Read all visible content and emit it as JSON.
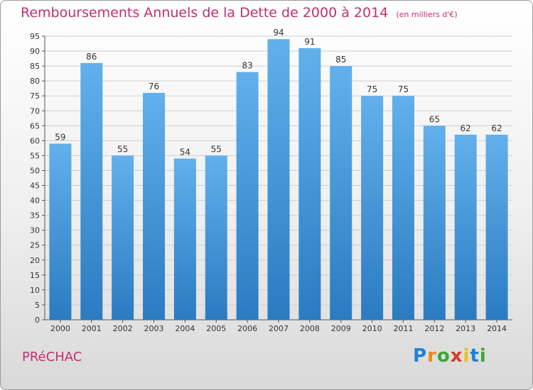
{
  "chart_data": {
    "type": "bar",
    "title": "Remboursements Annuels de la Dette de 2000 à 2014",
    "subtitle": "(en milliers d'€)",
    "categories": [
      "2000",
      "2001",
      "2002",
      "2003",
      "2004",
      "2005",
      "2006",
      "2007",
      "2008",
      "2009",
      "2010",
      "2011",
      "2012",
      "2013",
      "2014"
    ],
    "values": [
      59,
      86,
      55,
      76,
      54,
      55,
      83,
      94,
      91,
      85,
      75,
      75,
      65,
      62,
      62
    ],
    "ylim": [
      0,
      95
    ],
    "ytick_step": 5,
    "grid": true,
    "bar_color": "#3a8fd4"
  },
  "commune": "PRéCHAC",
  "logo": {
    "letters": [
      "P",
      "r",
      "o",
      "x",
      "i",
      "t",
      "i"
    ],
    "colors": [
      "#1f7fd6",
      "#e8891c",
      "#3aa635",
      "#d63a2a",
      "#e8c21c",
      "#1f7fd6",
      "#3aa635"
    ]
  }
}
